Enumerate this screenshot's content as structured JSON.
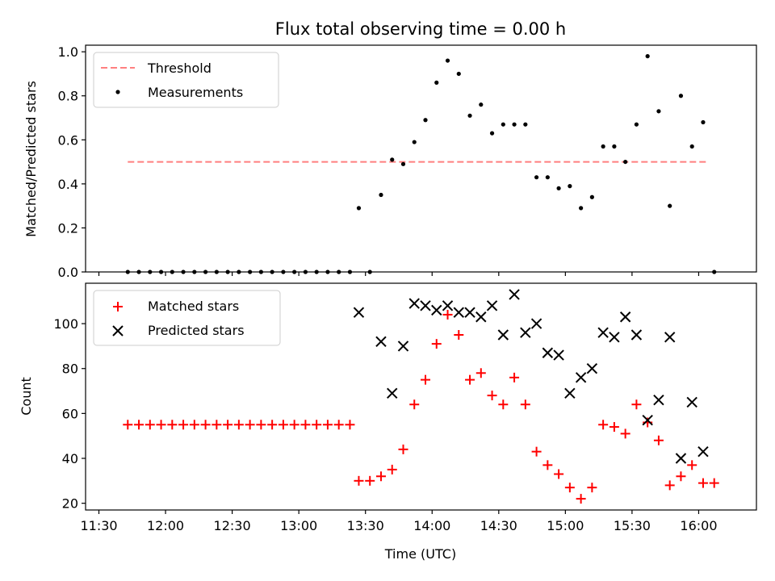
{
  "chart_data": [
    {
      "type": "scatter",
      "title": "Flux total observing time = 0.00 h",
      "ylabel": "Matched/Predicted stars",
      "xlabel": "",
      "xlim": [
        "11:24",
        "16:26"
      ],
      "ylim": [
        0,
        1.03
      ],
      "yticks": [
        "0.0",
        "0.2",
        "0.4",
        "0.6",
        "0.8",
        "1.0"
      ],
      "legend_position": "upper-left",
      "series": [
        {
          "name": "Threshold",
          "style": "dashed-line",
          "color": "#ff7f7f",
          "x_range": [
            "11:43",
            "16:04"
          ],
          "y": 0.5
        },
        {
          "name": "Measurements",
          "style": "dot",
          "color": "#000000",
          "points": [
            [
              "11:43",
              0.0
            ],
            [
              "11:48",
              0.0
            ],
            [
              "11:53",
              0.0
            ],
            [
              "11:58",
              0.0
            ],
            [
              "12:03",
              0.0
            ],
            [
              "12:08",
              0.0
            ],
            [
              "12:13",
              0.0
            ],
            [
              "12:18",
              0.0
            ],
            [
              "12:23",
              0.0
            ],
            [
              "12:28",
              0.0
            ],
            [
              "12:33",
              0.0
            ],
            [
              "12:38",
              0.0
            ],
            [
              "12:43",
              0.0
            ],
            [
              "12:48",
              0.0
            ],
            [
              "12:53",
              0.0
            ],
            [
              "12:58",
              0.0
            ],
            [
              "13:03",
              0.0
            ],
            [
              "13:08",
              0.0
            ],
            [
              "13:13",
              0.0
            ],
            [
              "13:18",
              0.0
            ],
            [
              "13:23",
              0.0
            ],
            [
              "13:27",
              0.29
            ],
            [
              "13:32",
              0.0
            ],
            [
              "13:37",
              0.35
            ],
            [
              "13:42",
              0.51
            ],
            [
              "13:47",
              0.49
            ],
            [
              "13:52",
              0.59
            ],
            [
              "13:57",
              0.69
            ],
            [
              "14:02",
              0.86
            ],
            [
              "14:07",
              0.96
            ],
            [
              "14:12",
              0.9
            ],
            [
              "14:17",
              0.71
            ],
            [
              "14:22",
              0.76
            ],
            [
              "14:27",
              0.63
            ],
            [
              "14:32",
              0.67
            ],
            [
              "14:37",
              0.67
            ],
            [
              "14:42",
              0.67
            ],
            [
              "14:47",
              0.43
            ],
            [
              "14:52",
              0.43
            ],
            [
              "14:57",
              0.38
            ],
            [
              "15:02",
              0.39
            ],
            [
              "15:07",
              0.29
            ],
            [
              "15:12",
              0.34
            ],
            [
              "15:17",
              0.57
            ],
            [
              "15:22",
              0.57
            ],
            [
              "15:27",
              0.5
            ],
            [
              "15:32",
              0.67
            ],
            [
              "15:37",
              0.98
            ],
            [
              "15:42",
              0.73
            ],
            [
              "15:47",
              0.3
            ],
            [
              "15:52",
              0.8
            ],
            [
              "15:57",
              0.57
            ],
            [
              "16:02",
              0.68
            ],
            [
              "16:07",
              0.0
            ]
          ]
        }
      ]
    },
    {
      "type": "scatter",
      "title": "",
      "ylabel": "Count",
      "xlabel": "Time (UTC)",
      "xlim": [
        "11:24",
        "16:26"
      ],
      "ylim": [
        17,
        118
      ],
      "yticks": [
        "20",
        "40",
        "60",
        "80",
        "100"
      ],
      "xticks": [
        "11:30",
        "12:00",
        "12:30",
        "13:00",
        "13:30",
        "14:00",
        "14:30",
        "15:00",
        "15:30",
        "16:00"
      ],
      "legend_position": "upper-left",
      "series": [
        {
          "name": "Matched stars",
          "style": "plus",
          "color": "#ff0000",
          "points": [
            [
              "11:43",
              55
            ],
            [
              "11:48",
              55
            ],
            [
              "11:53",
              55
            ],
            [
              "11:58",
              55
            ],
            [
              "12:03",
              55
            ],
            [
              "12:08",
              55
            ],
            [
              "12:13",
              55
            ],
            [
              "12:18",
              55
            ],
            [
              "12:23",
              55
            ],
            [
              "12:28",
              55
            ],
            [
              "12:33",
              55
            ],
            [
              "12:38",
              55
            ],
            [
              "12:43",
              55
            ],
            [
              "12:48",
              55
            ],
            [
              "12:53",
              55
            ],
            [
              "12:58",
              55
            ],
            [
              "13:03",
              55
            ],
            [
              "13:08",
              55
            ],
            [
              "13:13",
              55
            ],
            [
              "13:18",
              55
            ],
            [
              "13:23",
              55
            ],
            [
              "13:27",
              30
            ],
            [
              "13:32",
              30
            ],
            [
              "13:37",
              32
            ],
            [
              "13:42",
              35
            ],
            [
              "13:47",
              44
            ],
            [
              "13:52",
              64
            ],
            [
              "13:57",
              75
            ],
            [
              "14:02",
              91
            ],
            [
              "14:07",
              104
            ],
            [
              "14:12",
              95
            ],
            [
              "14:17",
              75
            ],
            [
              "14:22",
              78
            ],
            [
              "14:27",
              68
            ],
            [
              "14:32",
              64
            ],
            [
              "14:37",
              76
            ],
            [
              "14:42",
              64
            ],
            [
              "14:47",
              43
            ],
            [
              "14:52",
              37
            ],
            [
              "14:57",
              33
            ],
            [
              "15:02",
              27
            ],
            [
              "15:07",
              22
            ],
            [
              "15:12",
              27
            ],
            [
              "15:17",
              55
            ],
            [
              "15:22",
              54
            ],
            [
              "15:27",
              51
            ],
            [
              "15:32",
              64
            ],
            [
              "15:37",
              56
            ],
            [
              "15:42",
              48
            ],
            [
              "15:47",
              28
            ],
            [
              "15:52",
              32
            ],
            [
              "15:57",
              37
            ],
            [
              "16:02",
              29
            ],
            [
              "16:07",
              29
            ]
          ]
        },
        {
          "name": "Predicted stars",
          "style": "cross",
          "color": "#000000",
          "points": [
            [
              "13:27",
              105
            ],
            [
              "13:37",
              92
            ],
            [
              "13:42",
              69
            ],
            [
              "13:47",
              90
            ],
            [
              "13:52",
              109
            ],
            [
              "13:57",
              108
            ],
            [
              "14:02",
              106
            ],
            [
              "14:07",
              108
            ],
            [
              "14:12",
              105
            ],
            [
              "14:17",
              105
            ],
            [
              "14:22",
              103
            ],
            [
              "14:27",
              108
            ],
            [
              "14:32",
              95
            ],
            [
              "14:37",
              113
            ],
            [
              "14:42",
              96
            ],
            [
              "14:47",
              100
            ],
            [
              "14:52",
              87
            ],
            [
              "14:57",
              86
            ],
            [
              "15:02",
              69
            ],
            [
              "15:07",
              76
            ],
            [
              "15:12",
              80
            ],
            [
              "15:17",
              96
            ],
            [
              "15:22",
              94
            ],
            [
              "15:27",
              103
            ],
            [
              "15:32",
              95
            ],
            [
              "15:37",
              57
            ],
            [
              "15:42",
              66
            ],
            [
              "15:47",
              94
            ],
            [
              "15:52",
              40
            ],
            [
              "15:57",
              65
            ],
            [
              "16:02",
              43
            ]
          ]
        }
      ]
    }
  ]
}
